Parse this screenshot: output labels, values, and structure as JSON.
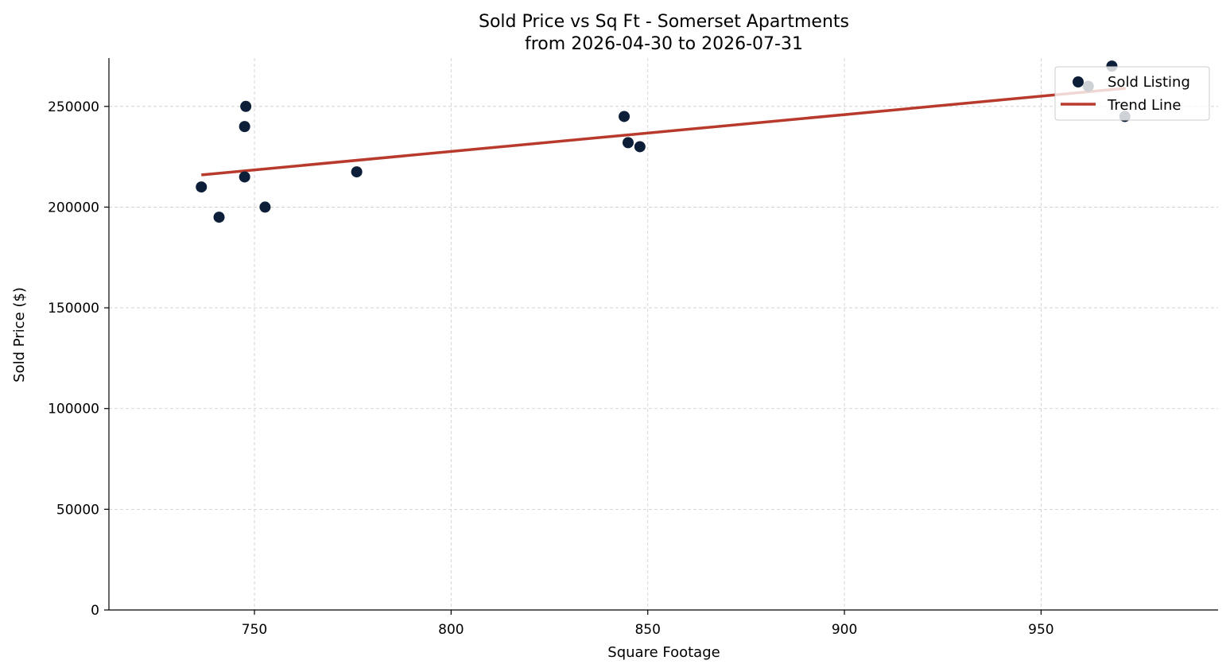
{
  "chart_data": {
    "type": "scatter",
    "title_line1": "Sold Price vs Sq Ft - Somerset Apartments",
    "title_line2": "from 2026-04-30 to 2026-07-31",
    "xlabel": "Square Footage",
    "ylabel": "Sold Price ($)",
    "xlim": [
      713,
      995
    ],
    "ylim": [
      0,
      274000
    ],
    "xticks": [
      750,
      800,
      850,
      900,
      950
    ],
    "yticks": [
      0,
      50000,
      100000,
      150000,
      200000,
      250000
    ],
    "grid": true,
    "legend_position": "top-right",
    "series": [
      {
        "name": "Sold Listing",
        "kind": "scatter",
        "color": "#0d1f38",
        "points": [
          {
            "x": 736.5,
            "y": 210000
          },
          {
            "x": 741,
            "y": 195000
          },
          {
            "x": 747.5,
            "y": 240000
          },
          {
            "x": 747.8,
            "y": 250000
          },
          {
            "x": 747.5,
            "y": 215000
          },
          {
            "x": 752.7,
            "y": 200000
          },
          {
            "x": 776,
            "y": 217500
          },
          {
            "x": 844,
            "y": 245000
          },
          {
            "x": 845,
            "y": 232000
          },
          {
            "x": 848,
            "y": 230000
          },
          {
            "x": 962,
            "y": 260000
          },
          {
            "x": 968,
            "y": 270000
          },
          {
            "x": 971.3,
            "y": 245000
          }
        ]
      },
      {
        "name": "Trend Line",
        "kind": "line",
        "color": "#b83a2c",
        "points": [
          {
            "x": 736.5,
            "y": 216000
          },
          {
            "x": 971.5,
            "y": 259000
          }
        ]
      }
    ]
  }
}
